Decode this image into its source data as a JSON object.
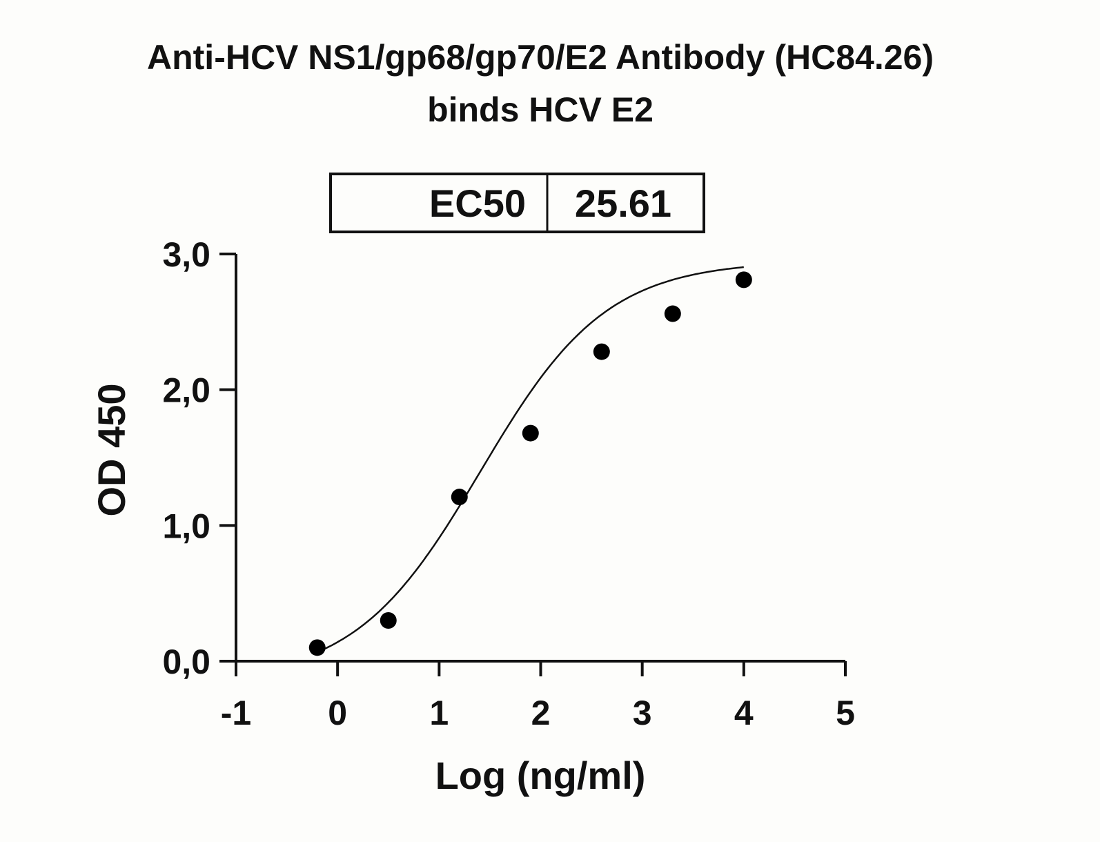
{
  "chart_data": {
    "type": "scatter",
    "title": "Anti-HCV NS1/gp68/gp70/E2 Antibody (HC84.26)",
    "subtitle": "binds HCV E2",
    "xlabel": "Log (ng/ml)",
    "ylabel": "OD 450",
    "xlim": [
      -1,
      5
    ],
    "ylim": [
      0,
      3
    ],
    "x_ticks": [
      "-1",
      "0",
      "1",
      "2",
      "3",
      "4",
      "5"
    ],
    "y_ticks": [
      "0,0",
      "1,0",
      "2,0",
      "3,0"
    ],
    "grid": false,
    "legend_table": {
      "label": "EC50",
      "value": "25.61"
    },
    "points": {
      "x": [
        -0.2,
        0.5,
        1.2,
        1.9,
        2.6,
        3.3,
        4.0
      ],
      "y": [
        0.1,
        0.3,
        1.21,
        1.68,
        2.28,
        2.56,
        2.81
      ]
    },
    "fit_curve": {
      "model": "4PL",
      "bottom": -0.15,
      "top": 2.95,
      "log_ec50": 1.408,
      "hill": 0.7,
      "x_range": [
        -0.2,
        4.0
      ]
    },
    "colors": {
      "points": "#000000",
      "curve": "#000000"
    }
  }
}
